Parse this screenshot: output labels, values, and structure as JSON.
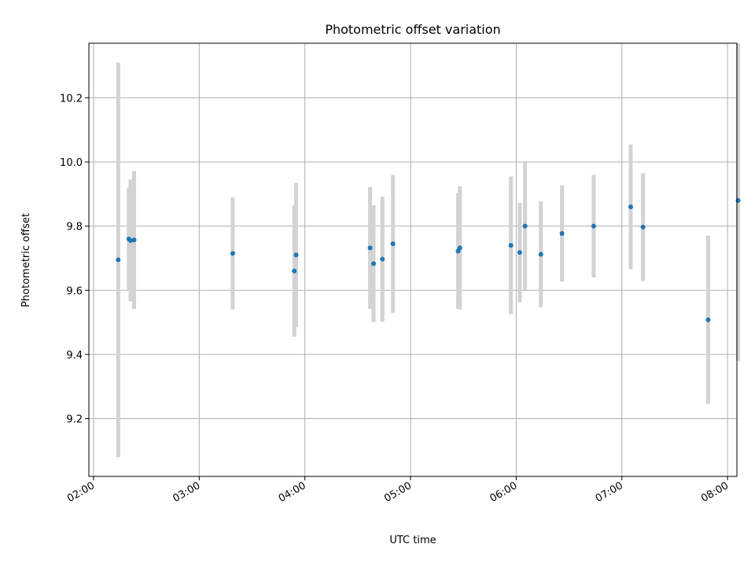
{
  "chart_data": {
    "type": "scatter",
    "title": "Photometric offset variation",
    "xlabel": "UTC time",
    "ylabel": "Photometric offset",
    "x_axis_kind": "time",
    "xlim": [
      "02:00",
      "08:08"
    ],
    "ylim": [
      9.02,
      10.37
    ],
    "x_ticks": [
      "02:00",
      "03:00",
      "04:00",
      "05:00",
      "06:00",
      "07:00",
      "08:00"
    ],
    "y_ticks": [
      9.2,
      9.4,
      9.6,
      9.8,
      10.0,
      10.2
    ],
    "grid": true,
    "legend": "none",
    "marker_color": "#1f77b4",
    "errorbar_color": "#d3d3d3",
    "points": [
      {
        "x": "02:14",
        "y": 9.695,
        "yerr": 0.615
      },
      {
        "x": "02:20",
        "y": 9.76,
        "yerr": 0.16
      },
      {
        "x": "02:21",
        "y": 9.755,
        "yerr": 0.19
      },
      {
        "x": "02:23",
        "y": 9.757,
        "yerr": 0.215
      },
      {
        "x": "03:19",
        "y": 9.715,
        "yerr": 0.175
      },
      {
        "x": "03:54",
        "y": 9.66,
        "yerr": 0.205
      },
      {
        "x": "03:55",
        "y": 9.71,
        "yerr": 0.225
      },
      {
        "x": "04:37",
        "y": 9.732,
        "yerr": 0.19
      },
      {
        "x": "04:39",
        "y": 9.683,
        "yerr": 0.182
      },
      {
        "x": "04:44",
        "y": 9.697,
        "yerr": 0.195
      },
      {
        "x": "04:50",
        "y": 9.745,
        "yerr": 0.215
      },
      {
        "x": "05:27",
        "y": 9.722,
        "yerr": 0.18
      },
      {
        "x": "05:28",
        "y": 9.732,
        "yerr": 0.192
      },
      {
        "x": "05:57",
        "y": 9.74,
        "yerr": 0.215
      },
      {
        "x": "06:02",
        "y": 9.718,
        "yerr": 0.155
      },
      {
        "x": "06:05",
        "y": 9.8,
        "yerr": 0.198
      },
      {
        "x": "06:14",
        "y": 9.712,
        "yerr": 0.165
      },
      {
        "x": "06:26",
        "y": 9.777,
        "yerr": 0.15
      },
      {
        "x": "06:44",
        "y": 9.8,
        "yerr": 0.16
      },
      {
        "x": "07:05",
        "y": 9.86,
        "yerr": 0.195
      },
      {
        "x": "07:12",
        "y": 9.797,
        "yerr": 0.168
      },
      {
        "x": "07:49",
        "y": 9.508,
        "yerr": 0.262
      },
      {
        "x": "08:06",
        "y": 9.88,
        "yerr": 0.5
      }
    ]
  }
}
